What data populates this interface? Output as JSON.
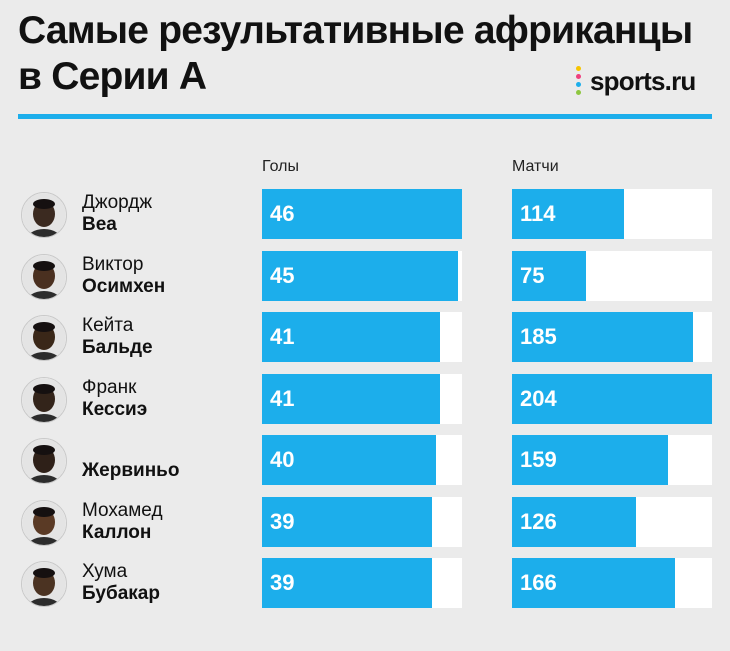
{
  "title_line1": "Самые результативные африканцы",
  "title_line2": "в Серии А",
  "logo": {
    "text": "sports.ru",
    "dot_colors": [
      "#f6c400",
      "#ef3f7d",
      "#1caeeb",
      "#8dc63f"
    ]
  },
  "colors": {
    "accent": "#1caeeb",
    "background": "#ebebeb",
    "track": "#ffffff"
  },
  "chart_data": {
    "type": "bar",
    "orientation": "horizontal",
    "categories": [
      "Джордж Веа",
      "Виктор Осимхен",
      "Кейта Бальде",
      "Франк Кессиэ",
      "Жервиньо",
      "Мохамед Каллон",
      "Хума Бубакар"
    ],
    "name_lines": [
      [
        "Джордж",
        "Веа"
      ],
      [
        "Виктор",
        "Осимхен"
      ],
      [
        "Кейта",
        "Бальде"
      ],
      [
        "Франк",
        "Кессиэ"
      ],
      [
        "",
        "Жервиньо"
      ],
      [
        "Мохамед",
        "Каллон"
      ],
      [
        "Хума",
        "Бубакар"
      ]
    ],
    "series": [
      {
        "name": "Голы",
        "values": [
          46,
          45,
          41,
          41,
          40,
          39,
          39
        ],
        "max": 46
      },
      {
        "name": "Матчи",
        "values": [
          114,
          75,
          185,
          204,
          159,
          126,
          166
        ],
        "max": 204
      }
    ],
    "legend": "column headers above bars",
    "grid": false
  }
}
